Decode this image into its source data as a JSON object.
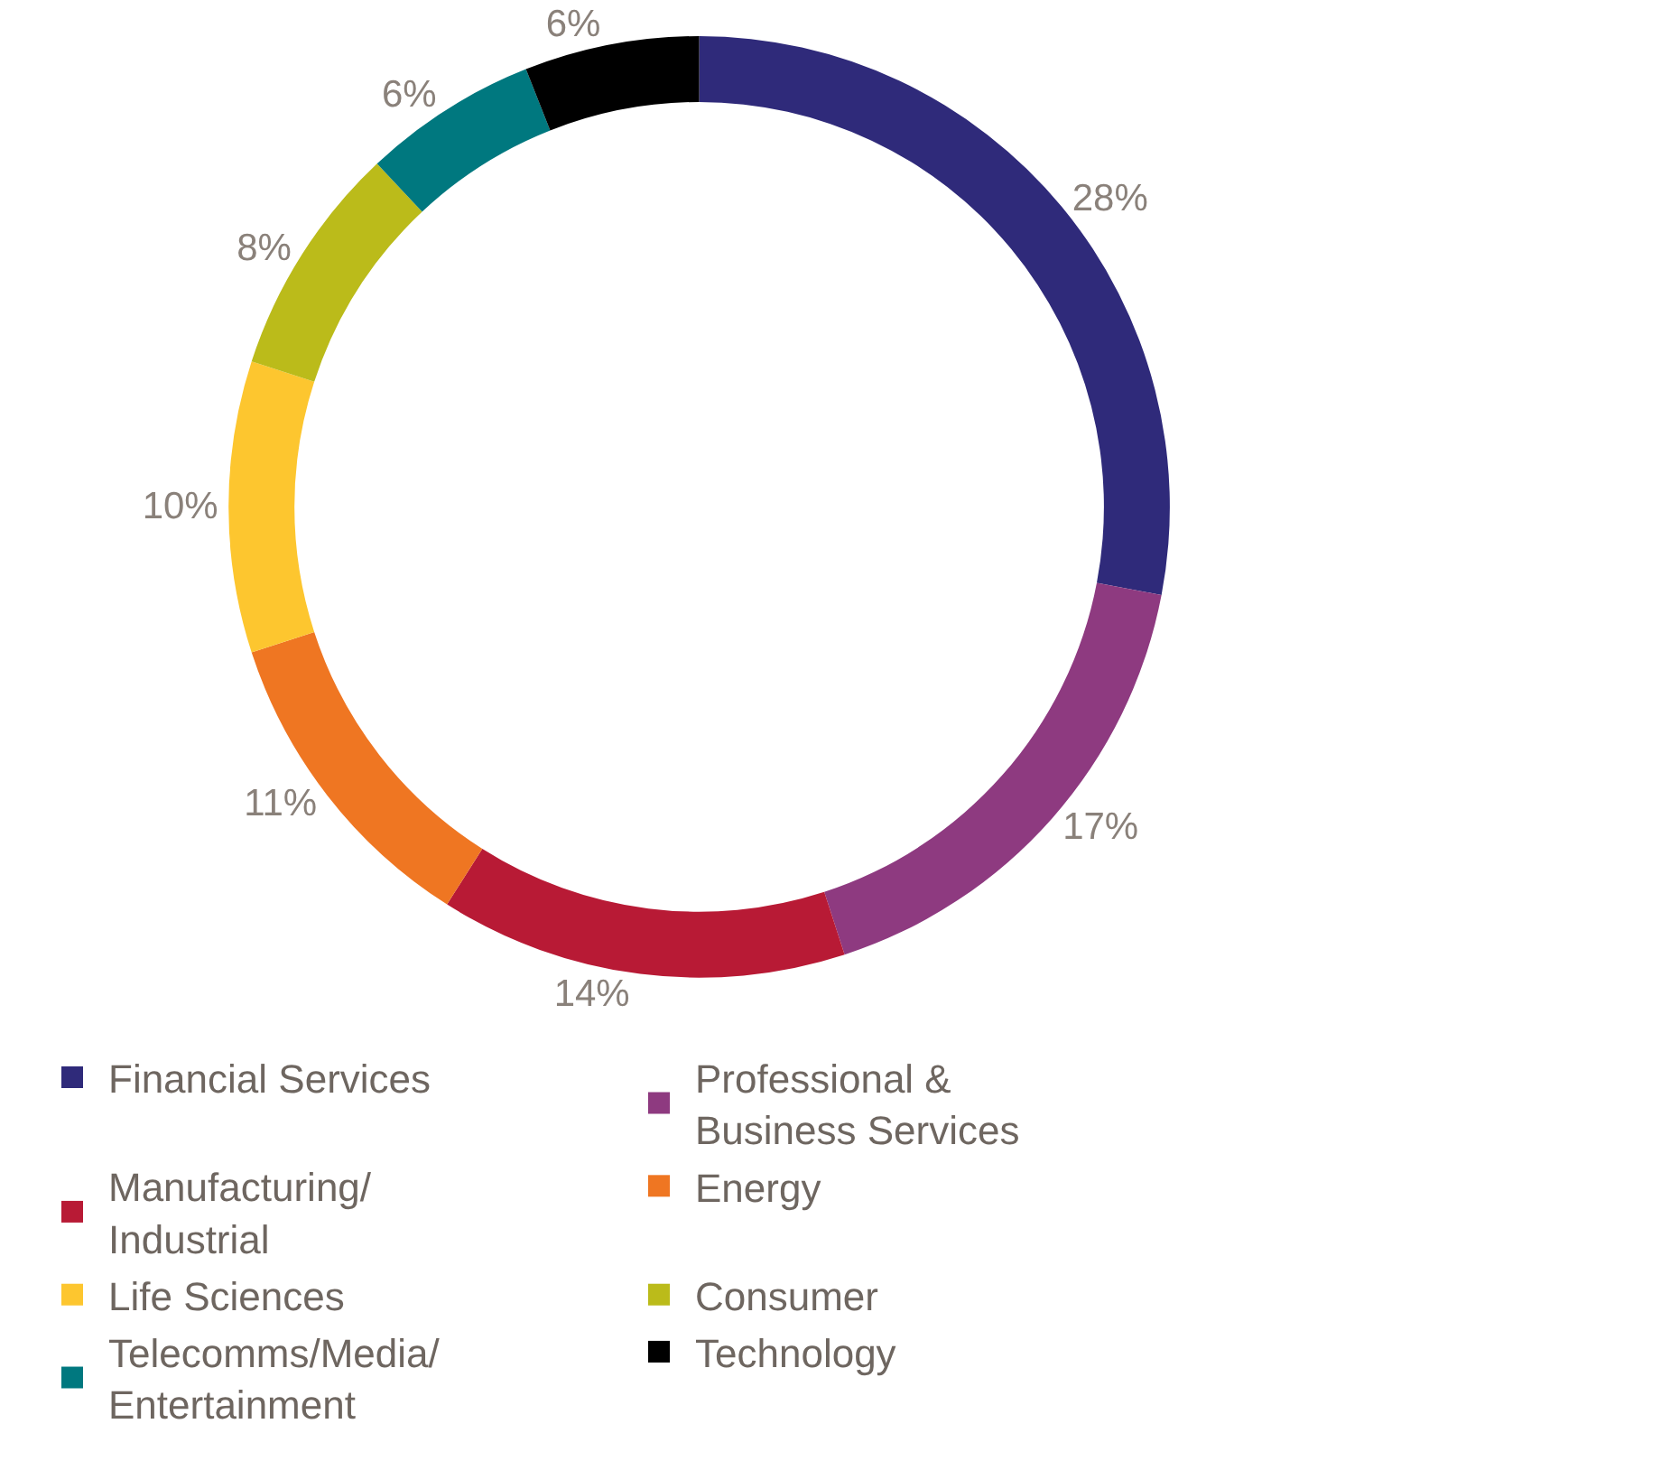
{
  "chart_data": {
    "type": "donut",
    "categories": [
      "Financial Services",
      "Professional & Business Services",
      "Manufacturing/Industrial",
      "Energy",
      "Life Sciences",
      "Consumer",
      "Telecomms/Media/Entertainment",
      "Technology"
    ],
    "values": [
      28,
      17,
      14,
      11,
      10,
      8,
      6,
      6
    ],
    "value_labels": [
      "28%",
      "17%",
      "14%",
      "11%",
      "10%",
      "8%",
      "6%",
      "6%"
    ],
    "colors": [
      "#2f2a7a",
      "#8e3a80",
      "#b81a35",
      "#ef7622",
      "#fdc62f",
      "#bbbb1a",
      "#00787f",
      "#000000"
    ],
    "legend": "bottom"
  }
}
